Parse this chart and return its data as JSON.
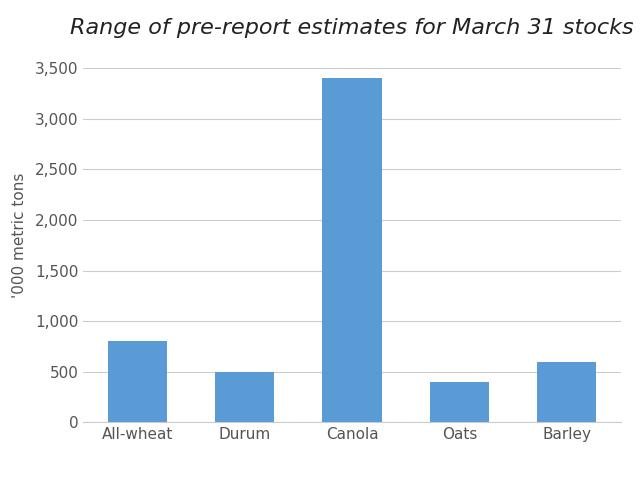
{
  "categories": [
    "All-wheat",
    "Durum",
    "Canola",
    "Oats",
    "Barley"
  ],
  "values": [
    800,
    500,
    3400,
    400,
    600
  ],
  "bar_color": "#5B9BD5",
  "title": "Range of pre-report estimates for March 31 stocks",
  "ylabel": "'000 metric tons",
  "ylim": [
    0,
    3700
  ],
  "yticks": [
    0,
    500,
    1000,
    1500,
    2000,
    2500,
    3000,
    3500
  ],
  "background_color": "#ffffff",
  "title_fontsize": 16,
  "axis_fontsize": 11,
  "tick_fontsize": 11,
  "xtick_fontsize": 11,
  "grid_color": "#cccccc",
  "bar_width": 0.55,
  "tick_color": "#555555",
  "spine_color": "#cccccc"
}
